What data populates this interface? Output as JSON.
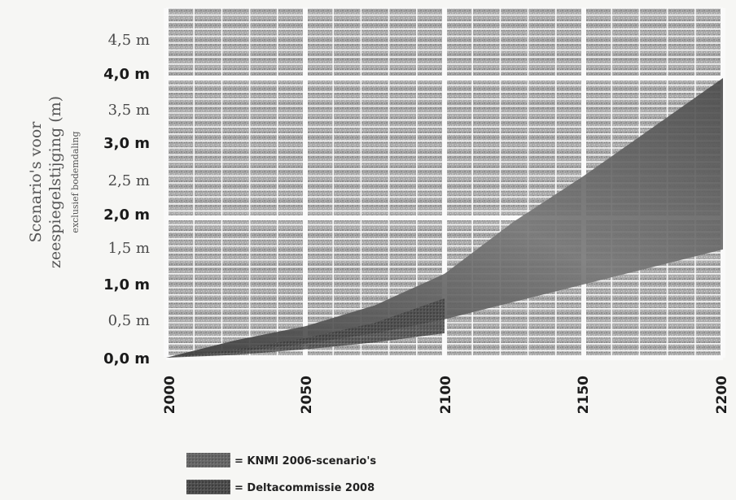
{
  "chart_data": {
    "type": "area",
    "ylabel_line1": "Scenario's voor",
    "ylabel_line2": "zeespiegelstijging (m)",
    "ylabel_line3": "exclusief bodemdaling",
    "x_ticks": [
      "2000",
      "2050",
      "2100",
      "2150",
      "2200"
    ],
    "y_ticks": [
      "0,0 m",
      "0,5 m",
      "1,0 m",
      "1,5 m",
      "2,0 m",
      "2,5 m",
      "3,0 m",
      "3,5 m",
      "4,0 m",
      "4,5 m"
    ],
    "xlim": [
      2000,
      2200
    ],
    "ylim": [
      0,
      5.0
    ],
    "grid": true,
    "legend_position": "bottom",
    "series": [
      {
        "name": "= KNMI 2006-scenario's",
        "color": "#4a4a4a",
        "x": [
          2000,
          2025,
          2050,
          2075,
          2100
        ],
        "lower": [
          0,
          0.04,
          0.12,
          0.22,
          0.35
        ],
        "upper": [
          0,
          0.12,
          0.28,
          0.5,
          0.85
        ]
      },
      {
        "name": "= Deltacommissie 2008",
        "color": "#5c5c5c",
        "x": [
          2000,
          2025,
          2050,
          2075,
          2100,
          2125,
          2150,
          2175,
          2200
        ],
        "lower": [
          0,
          0.08,
          0.2,
          0.35,
          0.55,
          0.8,
          1.05,
          1.3,
          1.55
        ],
        "upper": [
          0,
          0.25,
          0.45,
          0.75,
          1.2,
          1.95,
          2.6,
          3.3,
          4.0
        ]
      }
    ]
  }
}
